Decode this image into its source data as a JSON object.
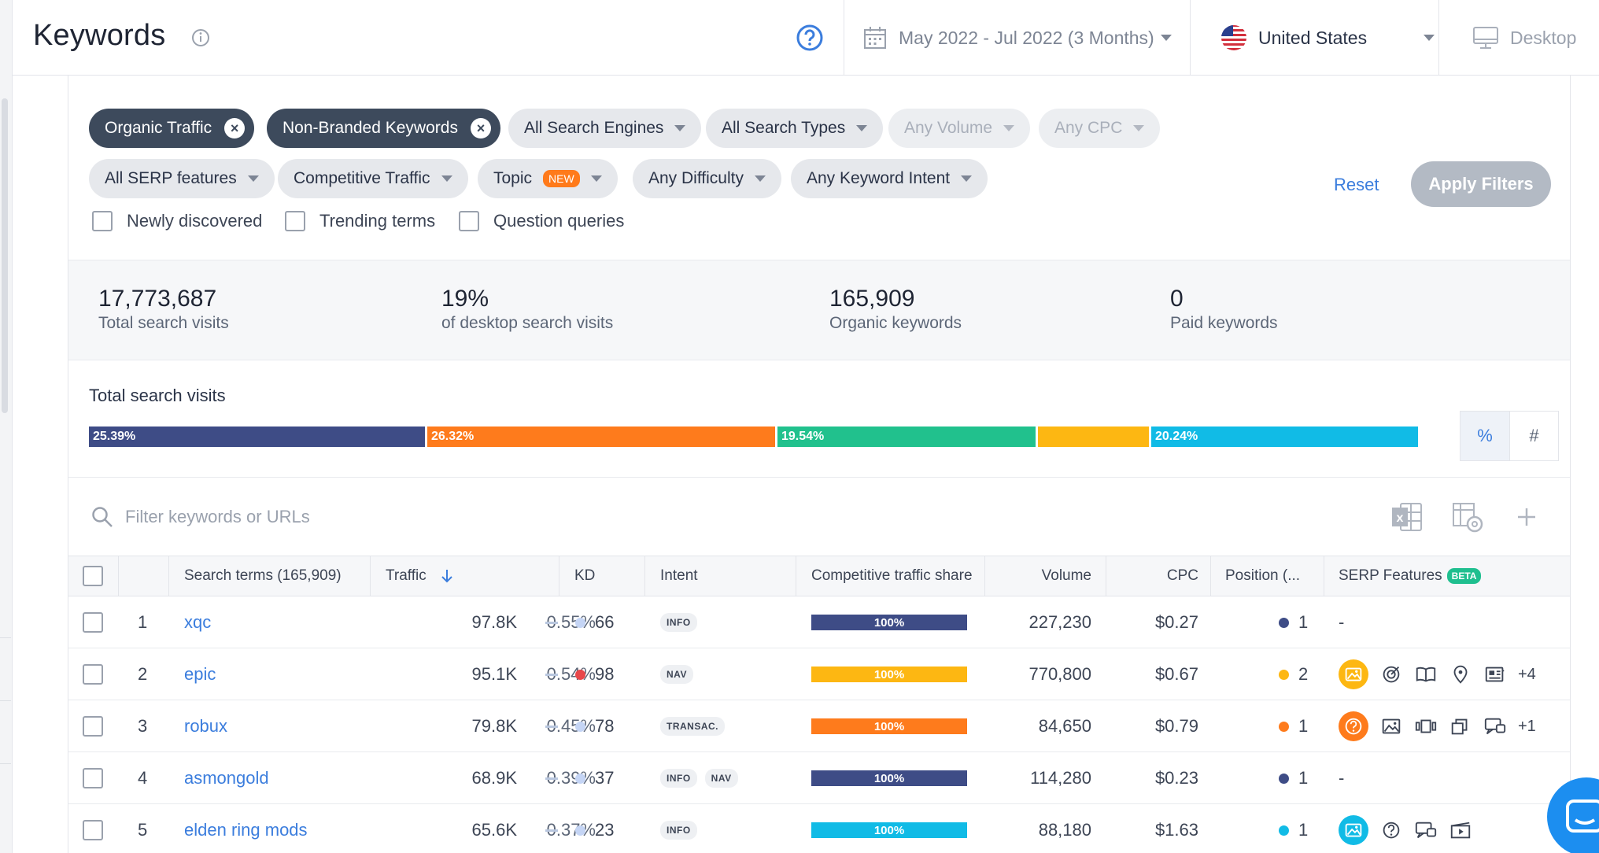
{
  "header": {
    "title": "Keywords",
    "date_range": "May 2022 - Jul 2022 (3 Months)",
    "country": "United States",
    "device": "Desktop"
  },
  "filters": {
    "active_chips": [
      {
        "label": "Organic Traffic"
      },
      {
        "label": "Non-Branded Keywords"
      }
    ],
    "dropdowns_row1": [
      "All Search Engines",
      "All Search Types",
      "Any Volume",
      "Any CPC"
    ],
    "dropdowns_row2": [
      "All SERP features",
      "Competitive Traffic",
      "Topic",
      "Any Difficulty",
      "Any Keyword Intent"
    ],
    "topic_badge": "NEW",
    "checkboxes": [
      "Newly discovered",
      "Trending terms",
      "Question queries"
    ],
    "reset_label": "Reset",
    "apply_label": "Apply Filters"
  },
  "stats": [
    {
      "value": "17,773,687",
      "label": "Total search visits"
    },
    {
      "value": "19%",
      "label": "of desktop search visits"
    },
    {
      "value": "165,909",
      "label": "Organic keywords"
    },
    {
      "value": "0",
      "label": "Paid keywords"
    }
  ],
  "distribution": {
    "title": "Total search visits",
    "segments": [
      {
        "label": "25.39%",
        "share": 25.39,
        "color": "#3e4c86"
      },
      {
        "label": "26.32%",
        "share": 26.32,
        "color": "#fe7b1c"
      },
      {
        "label": "19.54%",
        "share": 19.54,
        "color": "#21c18d"
      },
      {
        "label": "",
        "share": 8.51,
        "color": "#fdb712"
      },
      {
        "label": "20.24%",
        "share": 20.24,
        "color": "#11bbe6"
      }
    ],
    "toggle": {
      "percent": "%",
      "count": "#"
    }
  },
  "search": {
    "placeholder": "Filter keywords or URLs"
  },
  "table": {
    "headers": {
      "terms": "Search terms (165,909)",
      "traffic": "Traffic",
      "kd": "KD",
      "intent": "Intent",
      "share": "Competitive traffic share",
      "volume": "Volume",
      "cpc": "CPC",
      "position": "Position (...",
      "serp": "SERP Features",
      "serp_badge": "BETA"
    },
    "rows": [
      {
        "rank": "1",
        "keyword": "xqc",
        "traffic": "97.8K",
        "traffic_pct": "0.55%",
        "kd": "66",
        "kd_color": "#c5d5f5",
        "intents": [
          "INFO"
        ],
        "share": "100%",
        "share_color": "#3e4c86",
        "volume": "227,230",
        "cpc": "$0.27",
        "position": "1",
        "pos_color": "#3e4c86",
        "serp_none": "-",
        "serp": [],
        "serp_more": ""
      },
      {
        "rank": "2",
        "keyword": "epic",
        "traffic": "95.1K",
        "traffic_pct": "0.54%",
        "kd": "98",
        "kd_color": "#e8474a",
        "intents": [
          "NAV"
        ],
        "share": "100%",
        "share_color": "#fdb712",
        "volume": "770,800",
        "cpc": "$0.67",
        "position": "2",
        "pos_color": "#fdb712",
        "serp_none": "",
        "serp": [
          "image-pack-icon",
          "target-icon",
          "book-icon",
          "location-pin-icon",
          "news-icon"
        ],
        "serp_accent": "#fdb712",
        "serp_more": "+4"
      },
      {
        "rank": "3",
        "keyword": "robux",
        "traffic": "79.8K",
        "traffic_pct": "0.45%",
        "kd": "78",
        "kd_color": "#c5d5f5",
        "intents": [
          "TRANSAC."
        ],
        "share": "100%",
        "share_color": "#fe7b1c",
        "volume": "84,650",
        "cpc": "$0.79",
        "position": "1",
        "pos_color": "#fe7b1c",
        "serp_none": "",
        "serp": [
          "question-icon",
          "image-icon",
          "carousel-icon",
          "stack-icon",
          "reviews-icon"
        ],
        "serp_accent": "#fe7b1c",
        "serp_more": "+1"
      },
      {
        "rank": "4",
        "keyword": "asmongold",
        "traffic": "68.9K",
        "traffic_pct": "0.39%",
        "kd": "37",
        "kd_color": "#c5d5f5",
        "intents": [
          "INFO",
          "NAV"
        ],
        "share": "100%",
        "share_color": "#3e4c86",
        "volume": "114,280",
        "cpc": "$0.23",
        "position": "1",
        "pos_color": "#3e4c86",
        "serp_none": "-",
        "serp": [],
        "serp_more": ""
      },
      {
        "rank": "5",
        "keyword": "elden ring mods",
        "traffic": "65.6K",
        "traffic_pct": "0.37%",
        "kd": "23",
        "kd_color": "#c5d5f5",
        "intents": [
          "INFO"
        ],
        "share": "100%",
        "share_color": "#11bbe6",
        "volume": "88,180",
        "cpc": "$1.63",
        "position": "1",
        "pos_color": "#11bbe6",
        "serp_none": "",
        "serp": [
          "image-pack-icon",
          "question-icon",
          "reviews-icon",
          "video-icon"
        ],
        "serp_accent": "#11bbe6",
        "serp_more": ""
      }
    ]
  }
}
